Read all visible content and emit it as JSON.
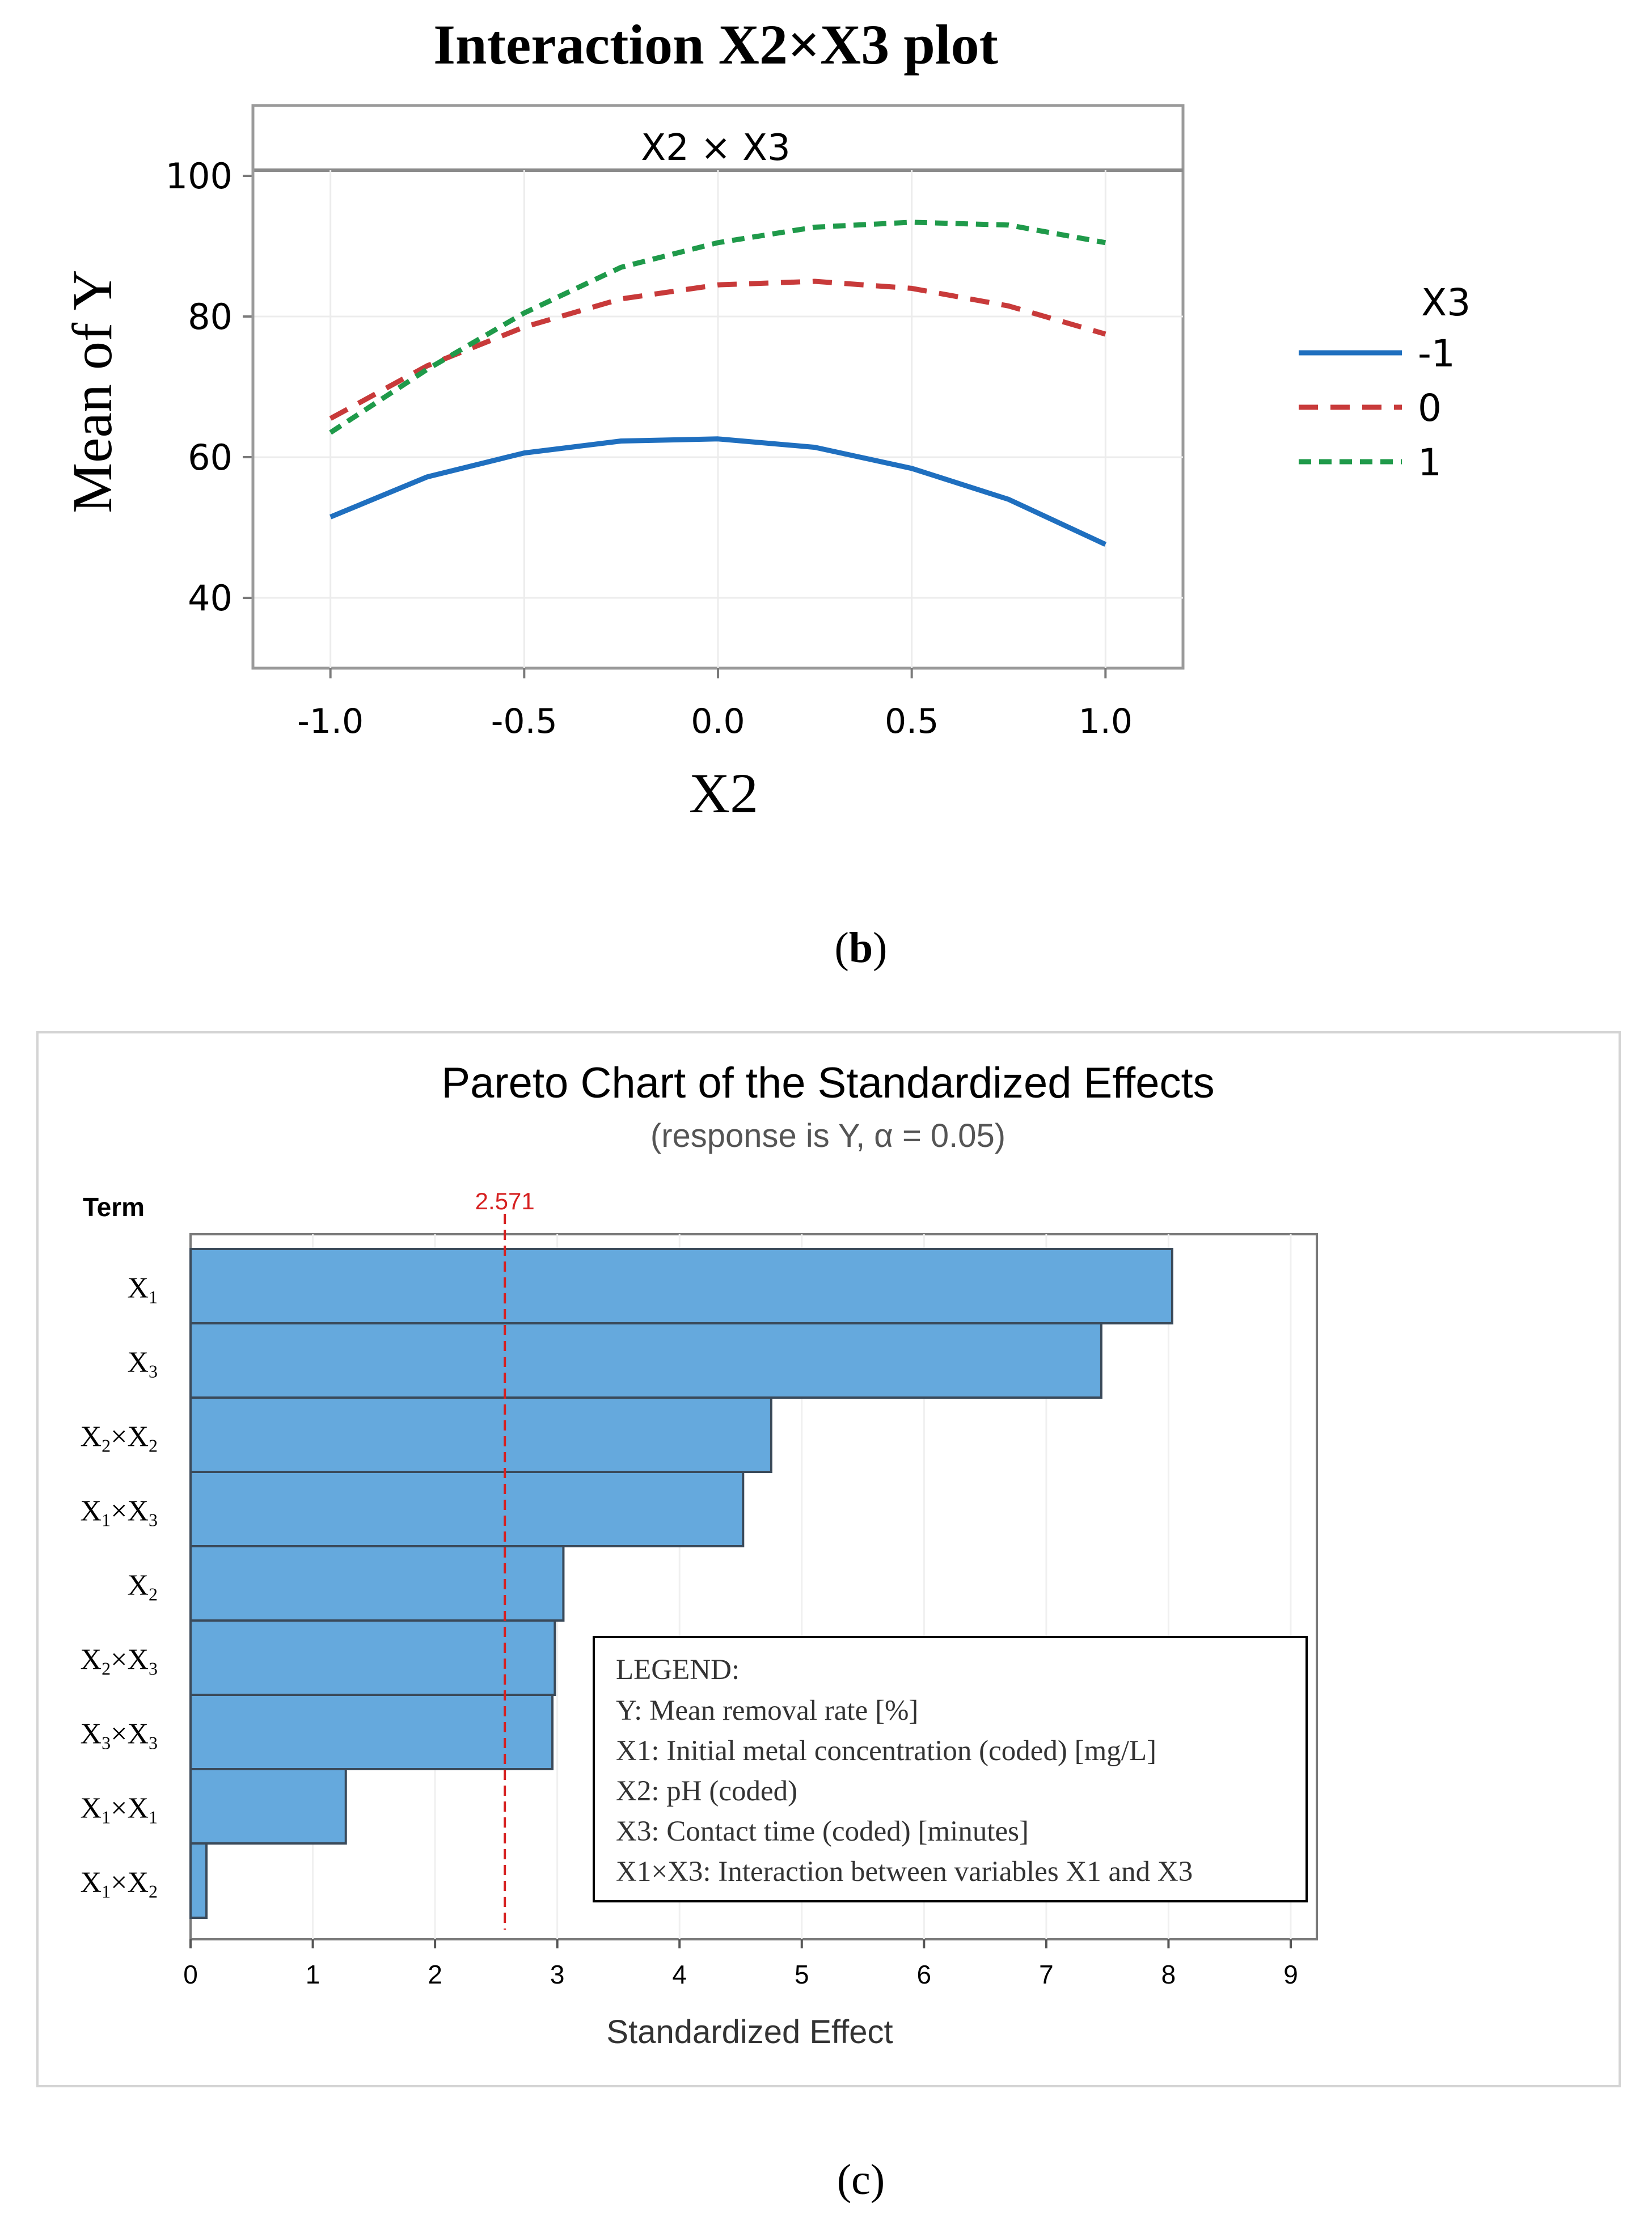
{
  "panel_b_label": {
    "open": "(",
    "letter": "b",
    "close": ")"
  },
  "panel_c_label": "(c)",
  "chart_data": [
    {
      "type": "line",
      "title": "Interaction X2×X3 plot",
      "facet_label": "X2 × X3",
      "xlabel": "X2",
      "ylabel": "Mean of Y",
      "xlim": [
        -1.2,
        1.2
      ],
      "ylim": [
        30,
        110
      ],
      "x_ticks": [
        -1.0,
        -0.5,
        0.0,
        0.5,
        1.0
      ],
      "x_tick_labels": [
        "-1.0",
        "-0.5",
        "0.0",
        "0.5",
        "1.0"
      ],
      "y_ticks": [
        40,
        60,
        80,
        100
      ],
      "y_tick_labels": [
        "40",
        "60",
        "80",
        "100"
      ],
      "legend": {
        "title": "X3",
        "position": "right"
      },
      "x": [
        -1.0,
        -0.75,
        -0.5,
        -0.25,
        0.0,
        0.25,
        0.5,
        0.75,
        1.0
      ],
      "series": [
        {
          "name": "-1",
          "color": "#1f6fbf",
          "style": "solid",
          "values": [
            51.5,
            57.2,
            60.6,
            62.3,
            62.6,
            61.4,
            58.4,
            54.0,
            47.6
          ]
        },
        {
          "name": "0",
          "color": "#c83a3a",
          "style": "dashed",
          "values": [
            65.5,
            73.0,
            78.5,
            82.5,
            84.5,
            85.0,
            84.0,
            81.5,
            77.5
          ]
        },
        {
          "name": "1",
          "color": "#1f9a4a",
          "style": "dotted",
          "values": [
            63.5,
            72.5,
            80.5,
            87.0,
            90.5,
            92.7,
            93.4,
            93.0,
            90.5
          ]
        }
      ]
    },
    {
      "type": "bar",
      "orientation": "horizontal",
      "title": "Pareto Chart of the Standardized Effects",
      "subtitle": "(response is Y, α = 0.05)",
      "term_header": "Term",
      "xlabel": "Standardized Effect",
      "xlim": [
        0,
        9.2
      ],
      "x_ticks": [
        0,
        1,
        2,
        3,
        4,
        5,
        6,
        7,
        8,
        9
      ],
      "x_tick_labels": [
        "0",
        "1",
        "2",
        "3",
        "4",
        "5",
        "6",
        "7",
        "8",
        "9"
      ],
      "reference_line": {
        "value": 2.571,
        "label": "2.571",
        "color": "#d62020"
      },
      "bar_color": "#65a9dd",
      "categories": [
        {
          "base": "X",
          "sub": "1",
          "op": "",
          "base2": "",
          "sub2": ""
        },
        {
          "base": "X",
          "sub": "3",
          "op": "",
          "base2": "",
          "sub2": ""
        },
        {
          "base": "X",
          "sub": "2",
          "op": "×",
          "base2": "X",
          "sub2": "2"
        },
        {
          "base": "X",
          "sub": "1",
          "op": "×",
          "base2": "X",
          "sub2": "3"
        },
        {
          "base": "X",
          "sub": "2",
          "op": "",
          "base2": "",
          "sub2": ""
        },
        {
          "base": "X",
          "sub": "2",
          "op": "×",
          "base2": "X",
          "sub2": "3"
        },
        {
          "base": "X",
          "sub": "3",
          "op": "×",
          "base2": "X",
          "sub2": "3"
        },
        {
          "base": "X",
          "sub": "1",
          "op": "×",
          "base2": "X",
          "sub2": "1"
        },
        {
          "base": "X",
          "sub": "1",
          "op": "×",
          "base2": "X",
          "sub2": "2"
        }
      ],
      "values": [
        8.03,
        7.45,
        4.75,
        4.52,
        3.05,
        2.98,
        2.96,
        1.27,
        0.13
      ],
      "legend_box": {
        "heading": "LEGEND:",
        "lines": [
          "Y: Mean removal rate [%]",
          "X1: Initial metal concentration (coded) [mg/L]",
          "X2: pH (coded)",
          "X3: Contact time (coded) [minutes]",
          "X1×X3:  Interaction between variables X1 and X3"
        ]
      }
    }
  ]
}
